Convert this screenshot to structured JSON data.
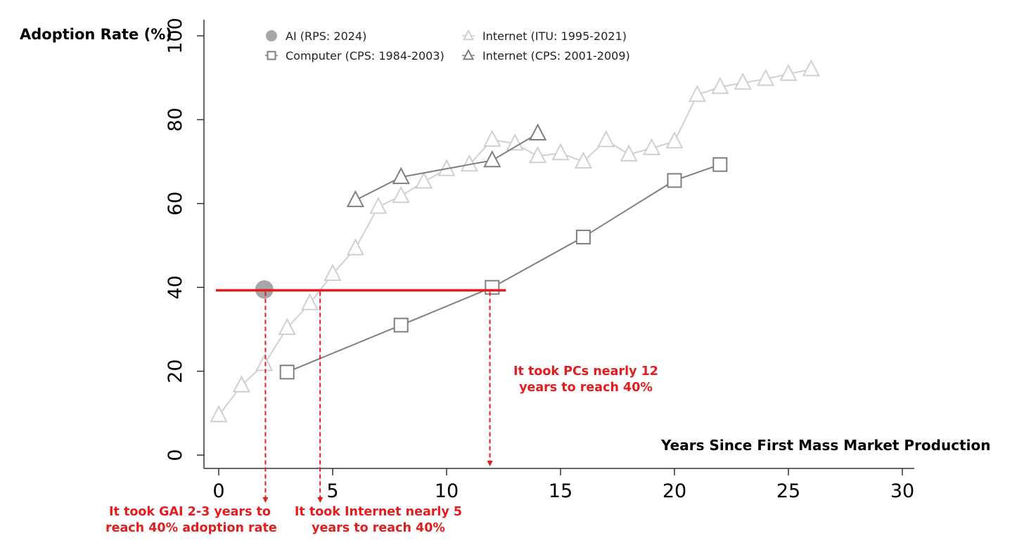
{
  "chart_data": {
    "type": "line",
    "ylabel": "Adoption Rate (%)",
    "xlabel": "Years Since First Mass Market Production",
    "xlim": [
      0,
      30
    ],
    "ylim": [
      0,
      100
    ],
    "xticks": [
      "0",
      "5",
      "10",
      "15",
      "20",
      "25",
      "30"
    ],
    "yticks": [
      "0",
      "20",
      "40",
      "60",
      "80",
      "100"
    ],
    "grid": false,
    "legend_position": "top",
    "series": [
      {
        "name": "AI (RPS: 2024)",
        "marker": "filled-circle",
        "color": "#a6a6a6",
        "points": [
          [
            2,
            39.5
          ]
        ]
      },
      {
        "name": "Computer (CPS: 1984-2003)",
        "marker": "hollow-square",
        "color": "#7f7f7f",
        "points": [
          [
            3,
            19.8
          ],
          [
            8,
            31
          ],
          [
            12,
            40
          ],
          [
            16,
            52
          ],
          [
            20,
            65.5
          ],
          [
            22,
            69.3
          ]
        ]
      },
      {
        "name": "Internet (ITU: 1995-2021)",
        "marker": "hollow-triangle",
        "color": "#d0d0d0",
        "points": [
          [
            0,
            9.5
          ],
          [
            1,
            16.6
          ],
          [
            2,
            21.7
          ],
          [
            3,
            30.3
          ],
          [
            4,
            36.2
          ],
          [
            5,
            43.2
          ],
          [
            6,
            49.3
          ],
          [
            7,
            59.2
          ],
          [
            8,
            61.8
          ],
          [
            9,
            65.2
          ],
          [
            10,
            68.2
          ],
          [
            11,
            69.3
          ],
          [
            12,
            75.2
          ],
          [
            13,
            74.3
          ],
          [
            14,
            71.3
          ],
          [
            15,
            72
          ],
          [
            16,
            70
          ],
          [
            17,
            75.1
          ],
          [
            18,
            71.7
          ],
          [
            19,
            73.2
          ],
          [
            20,
            74.8
          ],
          [
            21,
            85.9
          ],
          [
            22,
            87.8
          ],
          [
            23,
            88.8
          ],
          [
            24,
            89.7
          ],
          [
            25,
            90.9
          ],
          [
            26,
            92
          ]
        ]
      },
      {
        "name": "Internet (CPS: 2001-2009)",
        "marker": "hollow-triangle",
        "color": "#7f7f7f",
        "points": [
          [
            6,
            60.8
          ],
          [
            8,
            66.3
          ],
          [
            12,
            70.3
          ],
          [
            14,
            76.7
          ]
        ]
      }
    ],
    "threshold": {
      "y": 39.3,
      "x_from": 0,
      "x_to": 12.6,
      "color": "#e21d1d"
    },
    "drop_lines": [
      {
        "x": 2.05,
        "label": "It took GAI 2-3 years to reach 40% adoption rate",
        "lines": [
          "It took GAI 2-3 years to",
          "reach 40% adoption rate"
        ]
      },
      {
        "x": 4.45,
        "label": "It took Internet nearly 5 years to reach 40%",
        "lines": [
          "It took Internet nearly 5",
          "years to reach 40%"
        ]
      },
      {
        "x": 11.9,
        "label": "It took PCs nearly 12 years to reach 40%",
        "lines": [
          "It took PCs nearly 12",
          "years to reach 40%"
        ]
      }
    ]
  }
}
